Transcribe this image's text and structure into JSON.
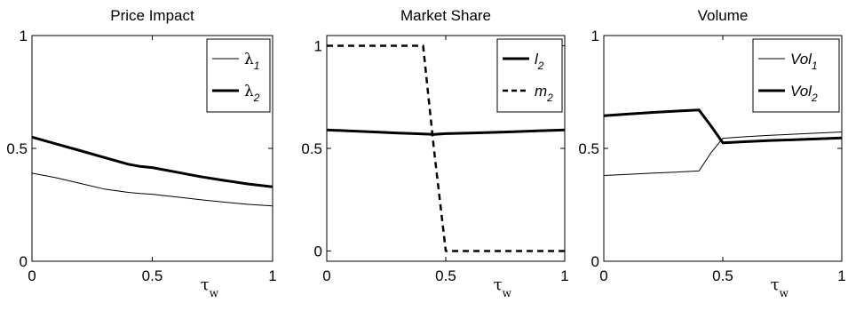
{
  "chart_data": [
    {
      "type": "line",
      "title": "Price Impact",
      "xlabel": "τ",
      "xlabel_sub": "w",
      "xlim": [
        0,
        1
      ],
      "ylim": [
        0,
        1
      ],
      "xticks": [
        "0",
        "0.5",
        "1"
      ],
      "yticks": [
        "0",
        "0.5",
        "1"
      ],
      "legend_position": "top-right",
      "x": [
        0,
        0.1,
        0.2,
        0.3,
        0.4,
        0.45,
        0.5,
        0.6,
        0.7,
        0.8,
        0.9,
        1.0
      ],
      "series": [
        {
          "name": "λ",
          "sub": "1",
          "style": "thin",
          "values": [
            0.39,
            0.37,
            0.345,
            0.32,
            0.305,
            0.3,
            0.297,
            0.285,
            0.273,
            0.262,
            0.252,
            0.245
          ]
        },
        {
          "name": "λ",
          "sub": "2",
          "style": "thick",
          "values": [
            0.55,
            0.52,
            0.49,
            0.46,
            0.43,
            0.42,
            0.415,
            0.395,
            0.375,
            0.358,
            0.342,
            0.33
          ]
        }
      ]
    },
    {
      "type": "line",
      "title": "Market Share",
      "xlabel": "τ",
      "xlabel_sub": "w",
      "xlim": [
        0,
        1
      ],
      "ylim": [
        -0.05,
        1.05
      ],
      "xticks": [
        "0",
        "0.5",
        "1"
      ],
      "yticks": [
        "0",
        "0.5",
        "1"
      ],
      "legend_position": "top-right",
      "x": [
        0,
        0.1,
        0.2,
        0.3,
        0.37,
        0.405,
        0.45,
        0.5,
        0.6,
        0.7,
        0.8,
        0.9,
        1.0
      ],
      "series": [
        {
          "name": "l",
          "sub": "2",
          "style": "solid",
          "values": [
            0.59,
            0.585,
            0.58,
            0.575,
            0.572,
            0.57,
            0.568,
            0.572,
            0.575,
            0.578,
            0.582,
            0.586,
            0.59
          ]
        },
        {
          "name": "m",
          "sub": "2",
          "style": "dashed",
          "values": [
            1,
            1,
            1,
            1,
            1,
            1,
            0.5,
            0,
            0,
            0,
            0,
            0,
            0
          ]
        }
      ]
    },
    {
      "type": "line",
      "title": "Volume",
      "xlabel": "τ",
      "xlabel_sub": "w",
      "xlim": [
        0,
        1
      ],
      "ylim": [
        0,
        1
      ],
      "xticks": [
        "0",
        "0.5",
        "1"
      ],
      "yticks": [
        "0",
        "0.5",
        "1"
      ],
      "legend_position": "top-right",
      "x": [
        0,
        0.1,
        0.2,
        0.3,
        0.4,
        0.45,
        0.5,
        0.6,
        0.7,
        0.8,
        0.9,
        1.0
      ],
      "series": [
        {
          "name": "Vol",
          "sub": "1",
          "style": "thin",
          "values": [
            0.38,
            0.385,
            0.39,
            0.395,
            0.4,
            0.48,
            0.545,
            0.552,
            0.558,
            0.563,
            0.568,
            0.573
          ]
        },
        {
          "name": "Vol",
          "sub": "2",
          "style": "thick",
          "values": [
            0.645,
            0.652,
            0.659,
            0.665,
            0.67,
            0.6,
            0.525,
            0.53,
            0.535,
            0.538,
            0.542,
            0.546
          ]
        }
      ]
    }
  ]
}
